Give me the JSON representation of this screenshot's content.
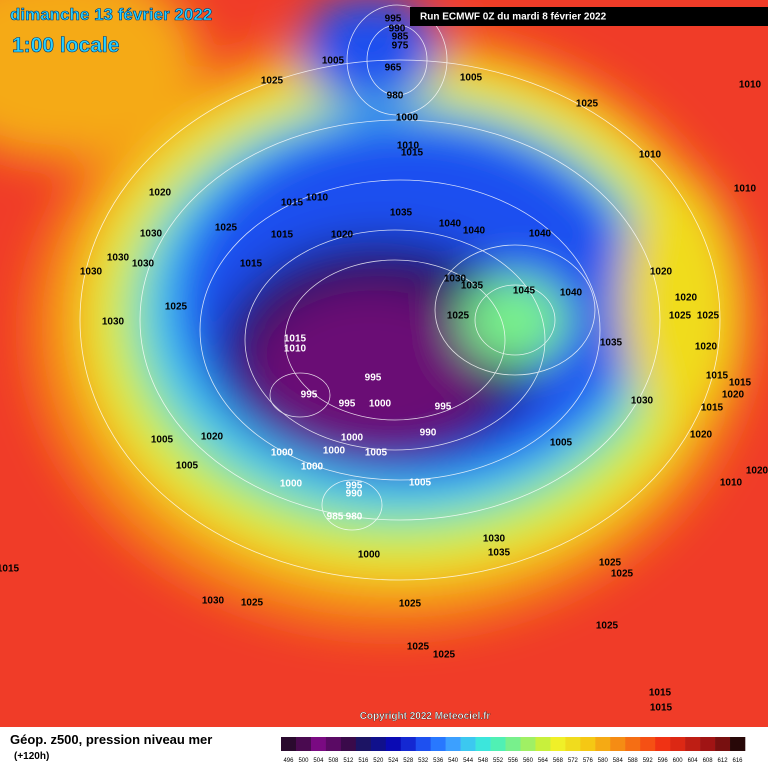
{
  "header": {
    "date": "dimanche 13 février 2022",
    "time": "1:00 locale",
    "run": "Run ECMWF 0Z du mardi 8 février 2022"
  },
  "footer": {
    "title": "Géop. z500, pression niveau mer",
    "lead": "(+120h)",
    "copyright": "Copyright 2022 Meteociel.fr"
  },
  "legend": {
    "values": [
      496,
      500,
      504,
      508,
      512,
      516,
      520,
      524,
      528,
      532,
      536,
      540,
      544,
      548,
      552,
      556,
      560,
      564,
      568,
      572,
      576,
      580,
      584,
      588,
      592,
      596,
      600,
      604,
      608,
      612,
      616
    ],
    "colors": [
      "#2a0a2e",
      "#4a0a50",
      "#7a0a82",
      "#5a0a64",
      "#3a0a4a",
      "#1c1464",
      "#10108c",
      "#0a0ab4",
      "#1428d2",
      "#1e50f0",
      "#2878ff",
      "#3ca0ff",
      "#3cc8f0",
      "#3ce6dc",
      "#50f0b4",
      "#78f08c",
      "#a0f064",
      "#c8f03c",
      "#f0f028",
      "#f0dc1e",
      "#f5c814",
      "#f5aa14",
      "#f58c14",
      "#f56e14",
      "#f55014",
      "#f03214",
      "#dc2814",
      "#be1e14",
      "#a01414",
      "#781010",
      "#280808"
    ]
  },
  "isobar_labels": [
    995,
    990,
    985,
    975,
    965,
    1005,
    1025,
    1005,
    980,
    1000,
    1010,
    1015,
    1025,
    1010,
    1010,
    1010,
    1020,
    1015,
    1010,
    1030,
    1025,
    1015,
    1020,
    1035,
    1040,
    1040,
    1040,
    1030,
    1030,
    1030,
    1015,
    1030,
    1035,
    1045,
    1040,
    1020,
    1020,
    1025,
    1030,
    1025,
    1025,
    1025,
    1035,
    1020,
    1015,
    1010,
    995,
    995,
    995,
    1000,
    995,
    990,
    1005,
    1020,
    1000,
    1000,
    1000,
    1005,
    1005,
    1000,
    1005,
    1000,
    995,
    990,
    1005,
    985,
    980,
    1000,
    1030,
    1035,
    1030,
    1025,
    1025,
    1025,
    1025,
    1025,
    1025,
    1025,
    1015,
    1030,
    1015,
    1015,
    1020,
    1015,
    1020,
    1020,
    1010,
    1015,
    1015
  ]
}
